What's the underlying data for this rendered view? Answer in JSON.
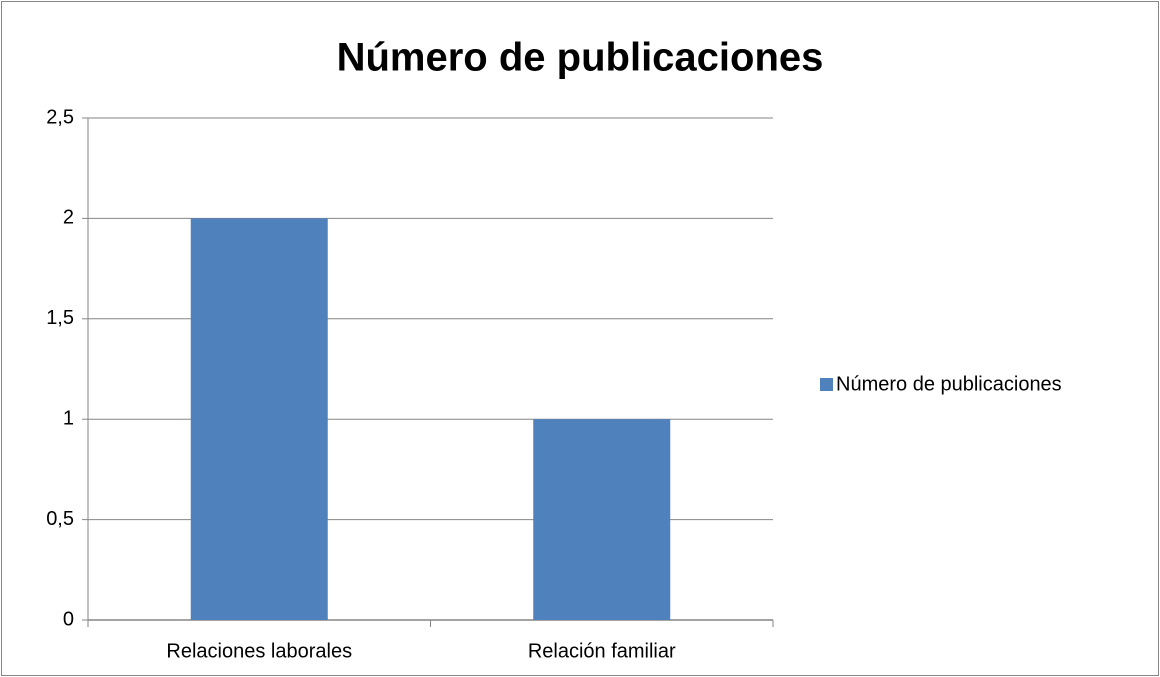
{
  "chart_data": {
    "type": "bar",
    "title": "Número de publicaciones",
    "categories": [
      "Relaciones laborales",
      "Relación familiar"
    ],
    "series": [
      {
        "name": "Número de publicaciones",
        "color": "#4f81bd",
        "values": [
          2,
          1
        ]
      }
    ],
    "ylim": [
      0,
      2.5
    ],
    "yticks": [
      0,
      {
        "value": 0.5,
        "label": "0,5"
      },
      1,
      {
        "value": 1.5,
        "label": "1,5"
      },
      2,
      {
        "value": 2.5,
        "label": "2,5"
      }
    ],
    "grid": true,
    "legend": "right"
  }
}
